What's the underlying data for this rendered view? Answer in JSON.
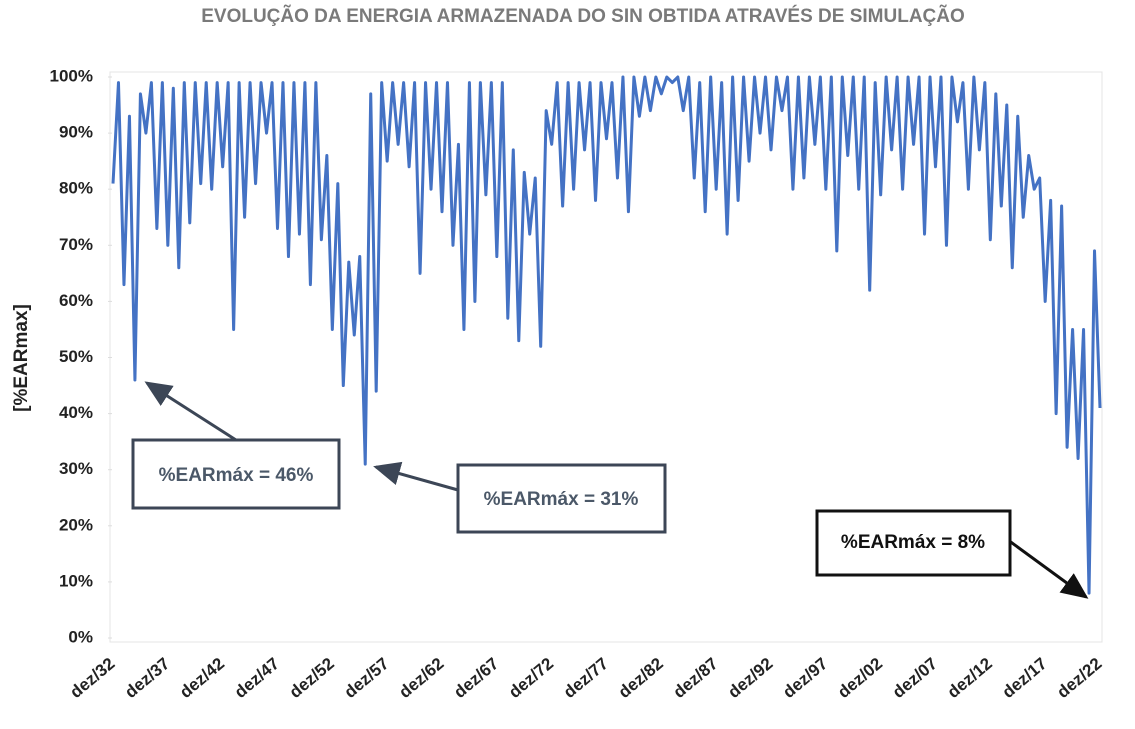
{
  "chart_data": {
    "type": "line",
    "title": "EVOLUÇÃO DA ENERGIA ARMAZENADA DO SIN OBTIDA ATRAVÉS DE SIMULAÇÃO",
    "y_label": "[%EARmax]",
    "color": "#4472c4",
    "categories": [
      "dez/32",
      null,
      null,
      null,
      null,
      null,
      null,
      null,
      null,
      null,
      "dez/37",
      null,
      null,
      null,
      null,
      null,
      null,
      null,
      null,
      null,
      "dez/42",
      null,
      null,
      null,
      null,
      null,
      null,
      null,
      null,
      null,
      "dez/47",
      null,
      null,
      null,
      null,
      null,
      null,
      null,
      null,
      null,
      "dez/52",
      null,
      null,
      null,
      null,
      null,
      null,
      null,
      null,
      null,
      "dez/57",
      null,
      null,
      null,
      null,
      null,
      null,
      null,
      null,
      null,
      "dez/62",
      null,
      null,
      null,
      null,
      null,
      null,
      null,
      null,
      null,
      "dez/67",
      null,
      null,
      null,
      null,
      null,
      null,
      null,
      null,
      null,
      "dez/72",
      null,
      null,
      null,
      null,
      null,
      null,
      null,
      null,
      null,
      "dez/77",
      null,
      null,
      null,
      null,
      null,
      null,
      null,
      null,
      null,
      "dez/82",
      null,
      null,
      null,
      null,
      null,
      null,
      null,
      null,
      null,
      "dez/87",
      null,
      null,
      null,
      null,
      null,
      null,
      null,
      null,
      null,
      "dez/92",
      null,
      null,
      null,
      null,
      null,
      null,
      null,
      null,
      null,
      "dez/97",
      null,
      null,
      null,
      null,
      null,
      null,
      null,
      null,
      null,
      "dez/02",
      null,
      null,
      null,
      null,
      null,
      null,
      null,
      null,
      null,
      "dez/07",
      null,
      null,
      null,
      null,
      null,
      null,
      null,
      null,
      null,
      "dez/12",
      null,
      null,
      null,
      null,
      null,
      null,
      null,
      null,
      null,
      "dez/17",
      null,
      null,
      null,
      null,
      null,
      null,
      null,
      null,
      null,
      "dez/22"
    ],
    "values": [
      81,
      99,
      63,
      93,
      46,
      97,
      90,
      99,
      73,
      99,
      70,
      98,
      66,
      99,
      74,
      99,
      81,
      99,
      80,
      99,
      84,
      99,
      55,
      99,
      75,
      99,
      81,
      99,
      90,
      99,
      73,
      99,
      68,
      99,
      72,
      99,
      63,
      99,
      71,
      86,
      55,
      81,
      45,
      67,
      54,
      68,
      31,
      97,
      44,
      99,
      85,
      99,
      88,
      99,
      84,
      99,
      65,
      99,
      80,
      99,
      76,
      99,
      70,
      88,
      55,
      99,
      60,
      99,
      79,
      99,
      68,
      99,
      57,
      87,
      53,
      83,
      72,
      82,
      52,
      94,
      88,
      99,
      77,
      99,
      80,
      99,
      87,
      99,
      78,
      99,
      89,
      99,
      82,
      100,
      76,
      100,
      93,
      100,
      94,
      100,
      97,
      100,
      99,
      100,
      94,
      100,
      82,
      99,
      76,
      100,
      80,
      99,
      72,
      100,
      78,
      100,
      85,
      100,
      90,
      100,
      87,
      100,
      94,
      100,
      80,
      100,
      82,
      100,
      88,
      100,
      80,
      100,
      69,
      100,
      86,
      100,
      80,
      100,
      62,
      99,
      79,
      100,
      87,
      100,
      80,
      100,
      88,
      100,
      72,
      100,
      84,
      100,
      70,
      100,
      92,
      99,
      80,
      100,
      87,
      99,
      71,
      97,
      77,
      95,
      66,
      93,
      75,
      86,
      80,
      82,
      60,
      78,
      40,
      77,
      34,
      55,
      32,
      55,
      8,
      69,
      41
    ],
    "ylim": [
      0,
      100
    ],
    "yticks": [
      {
        "value": 0,
        "label": "0%"
      },
      {
        "value": 10,
        "label": "10%"
      },
      {
        "value": 20,
        "label": "20%"
      },
      {
        "value": 30,
        "label": "30%"
      },
      {
        "value": 40,
        "label": "40%"
      },
      {
        "value": 50,
        "label": "50%"
      },
      {
        "value": 60,
        "label": "60%"
      },
      {
        "value": 70,
        "label": "70%"
      },
      {
        "value": 80,
        "label": "80%"
      },
      {
        "value": 90,
        "label": "90%"
      },
      {
        "value": 100,
        "label": "100%"
      }
    ],
    "annotations": [
      {
        "text": "%EARmáx = 46%"
      },
      {
        "text": "%EARmáx = 31%"
      },
      {
        "text": "%EARmáx = 8%"
      }
    ]
  }
}
